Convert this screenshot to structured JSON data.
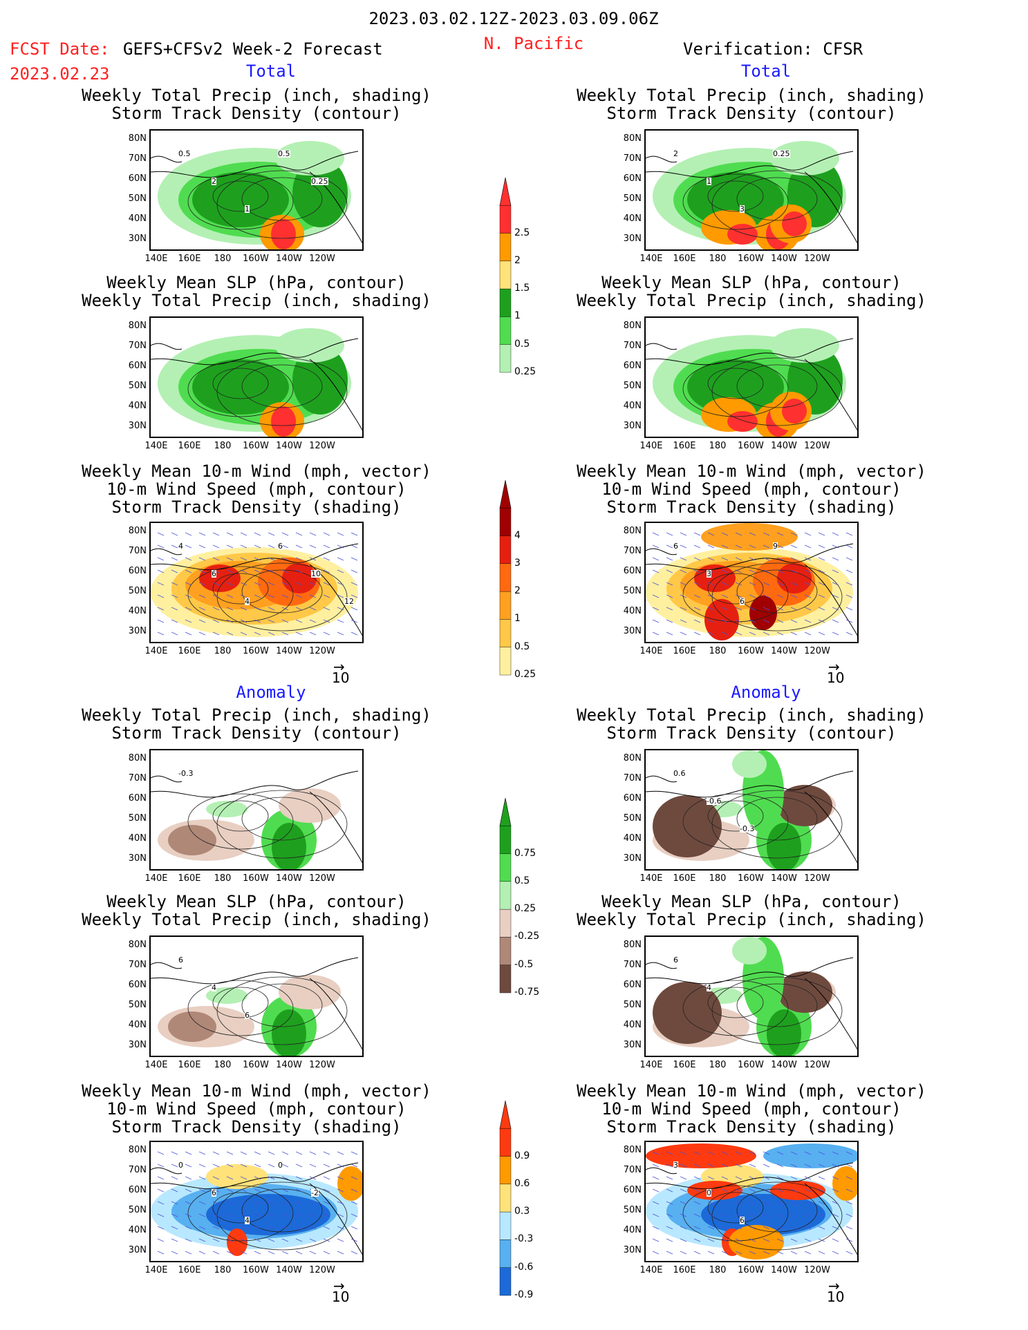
{
  "header": {
    "period": "2023.03.02.12Z-2023.03.09.06Z",
    "region": "N. Pacific",
    "fcst_label": "FCST Date:",
    "fcst_model": "GEFS+CFSv2 Week-2 Forecast",
    "fcst_date": "2023.02.23",
    "verification": "Verification: CFSR"
  },
  "sections": {
    "total": "Total",
    "anomaly": "Anomaly"
  },
  "titles": {
    "precip_track": [
      "Weekly Total Precip (inch, shading)",
      "Storm Track Density (contour)"
    ],
    "slp_precip": [
      "Weekly Mean SLP (hPa, contour)",
      "Weekly Total Precip (inch, shading)"
    ],
    "wind_track": [
      "Weekly Mean 10-m Wind (mph, vector)",
      "10-m Wind Speed (mph, contour)",
      "Storm Track Density (shading)"
    ]
  },
  "axes": {
    "lat_ticks": [
      "80N",
      "70N",
      "60N",
      "50N",
      "40N",
      "30N"
    ],
    "lon_ticks": [
      "140E",
      "160E",
      "180",
      "160W",
      "140W",
      "120W"
    ]
  },
  "vector_ref": "10",
  "colorbars": {
    "precip_total": {
      "labels": [
        "2.5",
        "2",
        "1.5",
        "1",
        "0.5",
        "0.25"
      ],
      "colors": [
        "#ff3030",
        "#ff9a00",
        "#ffe27a",
        "#1ea01e",
        "#50dc50",
        "#b4f0b4"
      ]
    },
    "track_total": {
      "labels": [
        "4",
        "3",
        "2",
        "1",
        "0.5",
        "0.25"
      ],
      "colors": [
        "#a00000",
        "#e62010",
        "#ff6a10",
        "#ffa020",
        "#ffc848",
        "#fff0a0"
      ]
    },
    "precip_anom": {
      "labels": [
        "0.75",
        "0.5",
        "0.25",
        "-0.25",
        "-0.5",
        "-0.75"
      ],
      "colors": [
        "#1ea01e",
        "#50dc50",
        "#b4f0b4",
        "#e8cfc2",
        "#b08878",
        "#6e4a3e"
      ]
    },
    "track_anom": {
      "labels": [
        "0.9",
        "0.6",
        "0.3",
        "-0.3",
        "-0.6",
        "-0.9"
      ],
      "colors": [
        "#ff3a10",
        "#ff9a00",
        "#ffe27a",
        "#b8e8ff",
        "#58b0f0",
        "#1c6ad8"
      ]
    }
  },
  "panel_labels": {
    "fcst_precip_track": [
      "0.5",
      "2",
      "1",
      "0.5",
      "0.25"
    ],
    "obs_precip_track": [
      "2",
      "1",
      "3",
      "0.25"
    ],
    "fcst_wind_track": [
      "4",
      "6",
      "4",
      "6",
      "10",
      "12"
    ],
    "obs_wind_track": [
      "6",
      "3",
      "6",
      "9"
    ],
    "fcst_precip_track_anom": [
      "-0.3"
    ],
    "obs_precip_track_anom": [
      "0.6",
      "-0.6",
      "-0.3"
    ],
    "fcst_slp_precip_anom": [
      "6",
      "4",
      "6"
    ],
    "obs_slp_precip_anom": [
      "6",
      "4"
    ],
    "fcst_wind_track_anom": [
      "0",
      "6",
      "4",
      "0",
      "-2"
    ],
    "obs_wind_track_anom": [
      "3",
      "0",
      "6"
    ]
  }
}
